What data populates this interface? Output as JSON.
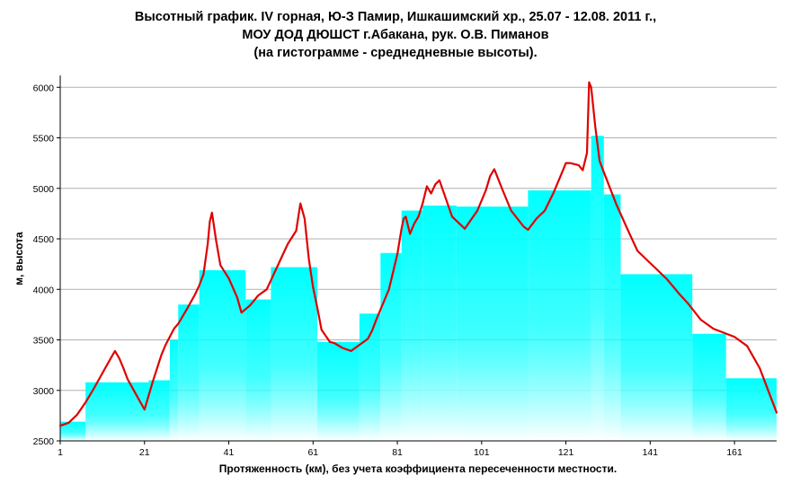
{
  "title_lines": [
    "Высотный график. IV горная, Ю-З Памир, Ишкашимский хр., 25.07 - 12.08. 2011 г.,",
    "МОУ ДОД ДЮШСТ г.Абакана,  рук. О.В. Пиманов",
    "(на гистограмме - среднедневные высоты)."
  ],
  "colors": {
    "bar_top": "#00ffff",
    "bar_bottom": "#ffffff",
    "line": "#e00000",
    "grid": "#b0b0b0",
    "axis": "#000000"
  },
  "chart_data": {
    "type": "bar",
    "xlabel": "Протяженность (км), без учета коэффициента пересеченности местности.",
    "ylabel": "м, высота",
    "xlim": [
      1,
      171
    ],
    "ylim": [
      2500,
      6100
    ],
    "yticks": [
      2500,
      3000,
      3500,
      4000,
      4500,
      5000,
      5500,
      6000
    ],
    "xticks": [
      1,
      21,
      41,
      61,
      81,
      101,
      121,
      141,
      161
    ],
    "grid": true,
    "series": [
      {
        "type": "bar",
        "bars": [
          {
            "x0": 1,
            "x1": 7,
            "value": 2690
          },
          {
            "x0": 7,
            "x1": 22,
            "value": 3080
          },
          {
            "x0": 22,
            "x1": 27,
            "value": 3100
          },
          {
            "x0": 27,
            "x1": 29,
            "value": 3500
          },
          {
            "x0": 29,
            "x1": 34,
            "value": 3850
          },
          {
            "x0": 34,
            "x1": 45,
            "value": 4190
          },
          {
            "x0": 45,
            "x1": 51,
            "value": 3900
          },
          {
            "x0": 51,
            "x1": 62,
            "value": 4220
          },
          {
            "x0": 62,
            "x1": 72,
            "value": 3480
          },
          {
            "x0": 72,
            "x1": 77,
            "value": 3760
          },
          {
            "x0": 77,
            "x1": 82,
            "value": 4360
          },
          {
            "x0": 82,
            "x1": 87,
            "value": 4780
          },
          {
            "x0": 87,
            "x1": 95,
            "value": 4830
          },
          {
            "x0": 95,
            "x1": 112,
            "value": 4820
          },
          {
            "x0": 112,
            "x1": 127,
            "value": 4980
          },
          {
            "x0": 127,
            "x1": 130,
            "value": 5520
          },
          {
            "x0": 130,
            "x1": 134,
            "value": 4940
          },
          {
            "x0": 134,
            "x1": 151,
            "value": 4150
          },
          {
            "x0": 151,
            "x1": 159,
            "value": 3560
          },
          {
            "x0": 159,
            "x1": 171,
            "value": 3120
          }
        ]
      },
      {
        "type": "line",
        "x": [
          1,
          3,
          5,
          7,
          9,
          11,
          13,
          14,
          15,
          16,
          17,
          19,
          21,
          23,
          24,
          25,
          26,
          27,
          28,
          29,
          31,
          33,
          34,
          35,
          36,
          36.5,
          37,
          38,
          39,
          41,
          43,
          44,
          46,
          48,
          50,
          52,
          55,
          57,
          58,
          59,
          60,
          61,
          62,
          63,
          65,
          66,
          68,
          70,
          71,
          74,
          75,
          76,
          78,
          79,
          81,
          82,
          82.5,
          83,
          84,
          85,
          86,
          87,
          88,
          89,
          90,
          91,
          94,
          97,
          100,
          102,
          103,
          104,
          106,
          108,
          111,
          112,
          114,
          116,
          118,
          120,
          121,
          122,
          124,
          125,
          126,
          126.5,
          127,
          128,
          129,
          130,
          133,
          136,
          138,
          141,
          145,
          148,
          150,
          153,
          156,
          161,
          164,
          167,
          169,
          171
        ],
        "values": [
          2650,
          2680,
          2760,
          2880,
          3020,
          3170,
          3320,
          3390,
          3320,
          3220,
          3110,
          2960,
          2810,
          3090,
          3220,
          3350,
          3450,
          3530,
          3610,
          3660,
          3800,
          3950,
          4040,
          4150,
          4450,
          4670,
          4760,
          4480,
          4240,
          4110,
          3920,
          3770,
          3840,
          3940,
          4000,
          4180,
          4450,
          4580,
          4850,
          4700,
          4300,
          4020,
          3820,
          3600,
          3480,
          3470,
          3420,
          3390,
          3420,
          3510,
          3590,
          3700,
          3900,
          4000,
          4350,
          4600,
          4700,
          4720,
          4550,
          4650,
          4720,
          4850,
          5020,
          4950,
          5040,
          5080,
          4720,
          4600,
          4780,
          4980,
          5120,
          5190,
          4980,
          4780,
          4620,
          4590,
          4700,
          4780,
          4950,
          5150,
          5250,
          5250,
          5230,
          5180,
          5350,
          6050,
          6000,
          5600,
          5270,
          5160,
          4840,
          4560,
          4380,
          4260,
          4100,
          3950,
          3860,
          3700,
          3610,
          3530,
          3440,
          3220,
          3000,
          2780
        ]
      }
    ]
  }
}
